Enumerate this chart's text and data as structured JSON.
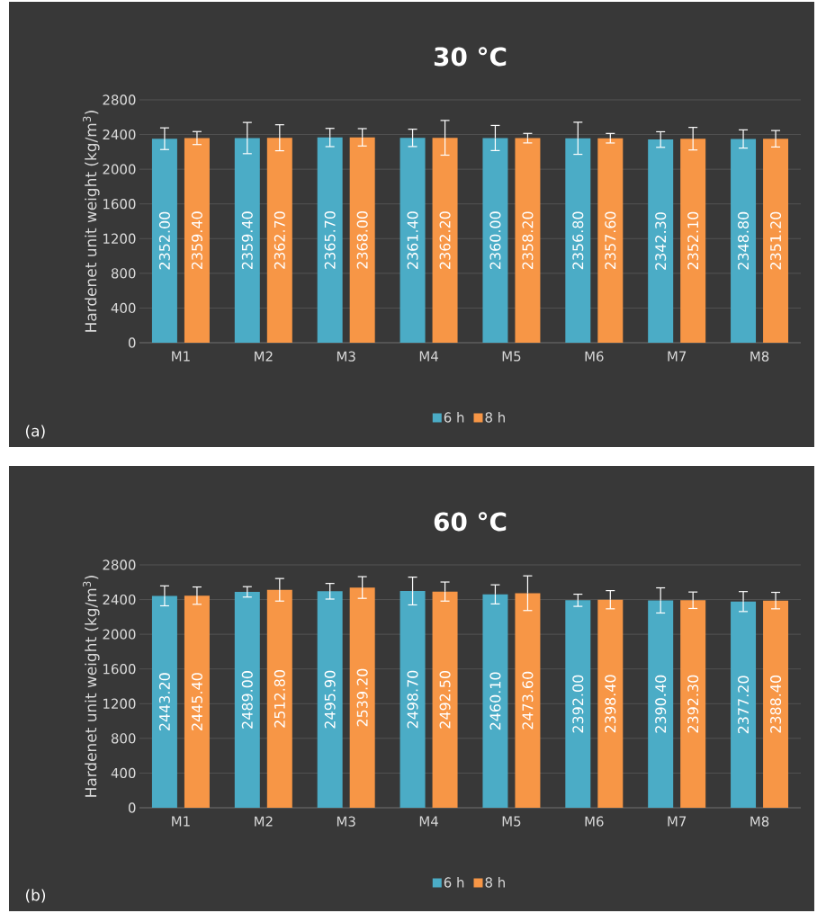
{
  "chart_data": [
    {
      "type": "bar",
      "title": "30 °C",
      "ylabel": "Hardenet unit weight (kg/m$^{3}$)",
      "categories": [
        "M1",
        "M2",
        "M3",
        "M4",
        "M5",
        "M6",
        "M7",
        "M8"
      ],
      "series": [
        {
          "name": "6 h",
          "color": "#4bacc6",
          "values": [
            2352.0,
            2359.4,
            2365.7,
            2361.4,
            2360.0,
            2356.8,
            2342.3,
            2348.8
          ],
          "errors": [
            125,
            180,
            105,
            100,
            145,
            185,
            90,
            105
          ],
          "value_labels": [
            "2352.00",
            "2359.40",
            "2365.70",
            "2361.40",
            "2360.00",
            "2356.80",
            "2342.30",
            "2348.80"
          ]
        },
        {
          "name": "8 h",
          "color": "#f79646",
          "values": [
            2359.4,
            2362.7,
            2368.0,
            2362.2,
            2358.2,
            2357.6,
            2352.1,
            2351.2
          ],
          "errors": [
            75,
            150,
            100,
            200,
            55,
            55,
            130,
            95
          ],
          "value_labels": [
            "2359.40",
            "2362.70",
            "2368.00",
            "2362.20",
            "2358.20",
            "2357.60",
            "2352.10",
            "2351.20"
          ]
        }
      ],
      "ylim": [
        0,
        2800
      ],
      "yticks": [
        0,
        400,
        800,
        1200,
        1600,
        2000,
        2400,
        2800
      ],
      "grid": "y",
      "legend": "bottom",
      "annotations": [
        "(a)"
      ]
    },
    {
      "type": "bar",
      "title": "60 °C",
      "ylabel": "Hardenet unit weight  (kg/m$^{3}$)",
      "categories": [
        "M1",
        "M2",
        "M3",
        "M4",
        "M5",
        "M6",
        "M7",
        "M8"
      ],
      "series": [
        {
          "name": "6 h",
          "color": "#4bacc6",
          "values": [
            2443.2,
            2489.0,
            2495.9,
            2498.7,
            2460.1,
            2392.0,
            2390.4,
            2377.2
          ],
          "errors": [
            115,
            60,
            90,
            160,
            110,
            70,
            145,
            115
          ],
          "value_labels": [
            "2443.20",
            "2489.00",
            "2495.90",
            "2498.70",
            "2460.10",
            "2392.00",
            "2390.40",
            "2377.20"
          ]
        },
        {
          "name": "8 h",
          "color": "#f79646",
          "values": [
            2445.4,
            2512.8,
            2539.2,
            2492.5,
            2473.6,
            2398.4,
            2392.3,
            2388.4
          ],
          "errors": [
            100,
            130,
            125,
            110,
            200,
            105,
            95,
            95
          ],
          "value_labels": [
            "2445.40",
            "2512.80",
            "2539.20",
            "2492.50",
            "2473.60",
            "2398.40",
            "2392.30",
            "2388.40"
          ]
        }
      ],
      "ylim": [
        0,
        2800
      ],
      "yticks": [
        0,
        400,
        800,
        1200,
        1600,
        2000,
        2400,
        2800
      ],
      "grid": "y",
      "legend": "bottom",
      "annotations": [
        "(b)"
      ]
    }
  ]
}
